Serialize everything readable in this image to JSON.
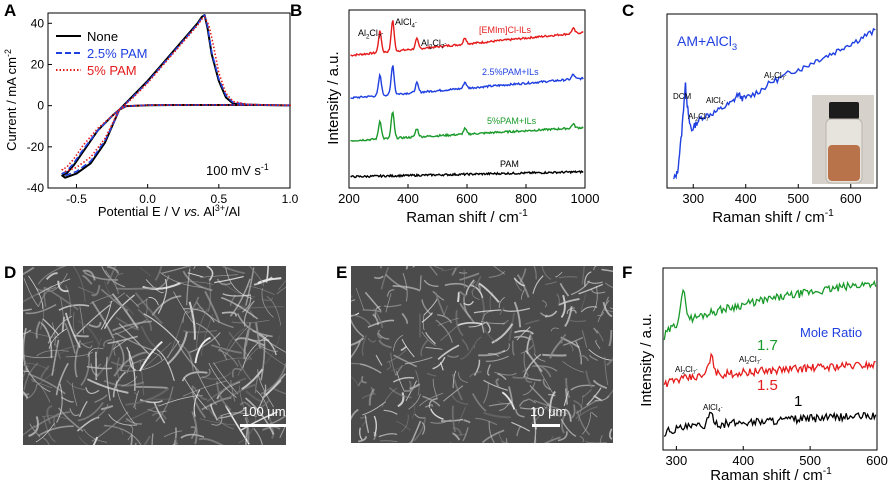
{
  "panel_letters": [
    "A",
    "B",
    "C",
    "D",
    "E",
    "F"
  ],
  "chart_data": [
    {
      "id": "A",
      "type": "line",
      "xlabel": "Potential E / V vs. Al³⁺/Al",
      "xlabel_parts": [
        "Potential E / V ",
        "vs.",
        " Al",
        "3+",
        "/Al"
      ],
      "ylabel_parts": [
        "Current / mA cm",
        "-2"
      ],
      "xlim": [
        -0.7,
        1.0
      ],
      "ylim": [
        -40,
        45
      ],
      "xticks": [
        -0.5,
        0.0,
        0.5,
        1.0
      ],
      "xtick_labels": [
        "-0.5",
        "0.0",
        "0.5",
        "1.0"
      ],
      "yticks": [
        -40,
        -20,
        0,
        20,
        40
      ],
      "ytick_labels": [
        "-40",
        "-20",
        "0",
        "20",
        "40"
      ],
      "annotation_parts": [
        "100 mV s",
        "-1"
      ],
      "legend": [
        "None",
        "2.5% PAM",
        "5% PAM"
      ],
      "series": [
        {
          "name": "None",
          "color": "#000000",
          "dash": "",
          "x": [
            -0.2,
            -0.1,
            0.0,
            0.1,
            0.2,
            0.3,
            0.35,
            0.38,
            0.4,
            0.42,
            0.45,
            0.5,
            0.55,
            0.6,
            0.7,
            0.8,
            0.9,
            1.0,
            0.8,
            0.6,
            0.4,
            0.2,
            0.0,
            -0.15,
            -0.2,
            -0.25,
            -0.35,
            -0.45,
            -0.52,
            -0.57,
            -0.6,
            -0.58,
            -0.5,
            -0.4,
            -0.3,
            -0.25,
            -0.2
          ],
          "y": [
            -2,
            5,
            12,
            20,
            28,
            36,
            40,
            43,
            44,
            38,
            25,
            12,
            4,
            1,
            0.5,
            0.3,
            0.2,
            0.1,
            0.3,
            0.3,
            0.3,
            0.3,
            0.2,
            -0.2,
            -2,
            -5,
            -12,
            -22,
            -29,
            -33,
            -34,
            -35,
            -33,
            -28,
            -18,
            -10,
            -2
          ]
        },
        {
          "name": "2.5% PAM",
          "color": "#1f3fe0",
          "dash": "6 3",
          "x": [
            -0.2,
            -0.1,
            0.0,
            0.1,
            0.2,
            0.3,
            0.35,
            0.38,
            0.4,
            0.42,
            0.45,
            0.5,
            0.55,
            0.6,
            0.7,
            0.8,
            0.9,
            1.0,
            0.8,
            0.6,
            0.4,
            0.2,
            0.0,
            -0.15,
            -0.2,
            -0.25,
            -0.35,
            -0.45,
            -0.52,
            -0.57,
            -0.6,
            -0.58,
            -0.5,
            -0.4,
            -0.3,
            -0.25,
            -0.2
          ],
          "y": [
            -2,
            4.5,
            11.5,
            19.5,
            27.5,
            35.5,
            39.5,
            42.5,
            44,
            39,
            26,
            13,
            5,
            1.5,
            0.6,
            0.3,
            0.2,
            0.1,
            0.3,
            0.3,
            0.3,
            0.3,
            0.2,
            -0.2,
            -2,
            -5,
            -12,
            -21,
            -28,
            -32,
            -33,
            -34,
            -32,
            -27,
            -17,
            -10,
            -2
          ]
        },
        {
          "name": "5% PAM",
          "color": "#e51c1c",
          "dash": "1.5 2",
          "x": [
            -0.2,
            -0.1,
            0.0,
            0.1,
            0.2,
            0.3,
            0.35,
            0.38,
            0.4,
            0.43,
            0.46,
            0.5,
            0.55,
            0.6,
            0.7,
            0.8,
            0.9,
            1.0,
            0.8,
            0.6,
            0.4,
            0.2,
            0.0,
            -0.15,
            -0.2,
            -0.25,
            -0.35,
            -0.45,
            -0.52,
            -0.57,
            -0.6,
            -0.58,
            -0.5,
            -0.4,
            -0.3,
            -0.25,
            -0.2
          ],
          "y": [
            -2,
            4,
            11,
            19,
            27,
            35,
            39,
            42,
            43,
            39,
            30,
            16,
            6,
            2,
            0.7,
            0.4,
            0.2,
            0.1,
            0.3,
            0.3,
            0.3,
            0.3,
            0.2,
            -0.2,
            -2,
            -5,
            -11,
            -19,
            -26,
            -30,
            -31,
            -32,
            -30,
            -25,
            -16,
            -9,
            -2
          ]
        }
      ]
    },
    {
      "id": "B",
      "type": "line",
      "xlabel": "Raman shift / cm⁻¹",
      "xlabel_parts": [
        "Raman shift / cm",
        "-1"
      ],
      "ylabel": "Intensity / a.u.",
      "xlim": [
        200,
        1000
      ],
      "xticks": [
        200,
        400,
        600,
        800,
        1000
      ],
      "xtick_labels": [
        "200",
        "400",
        "600",
        "800",
        "1000"
      ],
      "peak_labels": [
        {
          "text": "Al2Cl7-",
          "base": "Al",
          "sub1": "2",
          "mid": "Cl",
          "sub2": "7",
          "sup": "-",
          "x": 305
        },
        {
          "text": "AlCl4-",
          "base": "AlCl",
          "sub1": "4",
          "sup": "-",
          "x": 348
        },
        {
          "text": "Al2Cl7-",
          "base": "Al",
          "sub1": "2",
          "mid": "Cl",
          "sub2": "7",
          "sup": "-",
          "x": 430
        }
      ],
      "series": [
        {
          "name": "[EMIm]Cl-ILs",
          "color": "#e51c1c",
          "baseline": 0.76,
          "slope": 0.14,
          "peak_scale": 1.0
        },
        {
          "name": "2.5%PAM+ILs",
          "color": "#1f3fe0",
          "baseline": 0.5,
          "slope": 0.12,
          "peak_scale": 0.95
        },
        {
          "name": "5%PAM+ILs",
          "color": "#1a9a2a",
          "baseline": 0.24,
          "slope": 0.08,
          "peak_scale": 0.85
        },
        {
          "name": "PAM",
          "color": "#000000",
          "baseline": 0.02,
          "slope": 0.03,
          "peak_scale": 0.0
        }
      ],
      "peaks": [
        {
          "x": 305,
          "h": 0.13
        },
        {
          "x": 348,
          "h": 0.19
        },
        {
          "x": 430,
          "h": 0.06
        },
        {
          "x": 593,
          "h": 0.04
        },
        {
          "x": 960,
          "h": 0.03
        }
      ]
    },
    {
      "id": "C",
      "type": "line",
      "title": "AM+AlCl3",
      "title_parts": [
        "AM+AlCl",
        "3"
      ],
      "xlabel": "Raman shift / cm⁻¹",
      "xlabel_parts": [
        "Raman shift / cm",
        "-1"
      ],
      "xlim": [
        250,
        650
      ],
      "xticks": [
        300,
        400,
        500,
        600
      ],
      "xtick_labels": [
        "300",
        "400",
        "500",
        "600"
      ],
      "peak_labels": [
        {
          "text": "DCM",
          "x": 285
        },
        {
          "text": "Al2Cl7-",
          "base": "Al",
          "sub1": "2",
          "mid": "Cl",
          "sub2": "7",
          "sup": "-",
          "x": 312
        },
        {
          "text": "AlCl4-",
          "base": "AlCl",
          "sub1": "4",
          "sup": "-",
          "x": 355
        },
        {
          "text": "Al2Cl7-",
          "base": "Al",
          "sub1": "2",
          "mid": "Cl",
          "sub2": "7",
          "sup": "-",
          "x": 460
        }
      ],
      "series": [
        {
          "name": "AM+AlCl3",
          "color": "#1f3fe0",
          "x": [
            262,
            270,
            278,
            285,
            288,
            292,
            297,
            305,
            315,
            330,
            345,
            360,
            375,
            385,
            395,
            410,
            430,
            450,
            470,
            490,
            510,
            530,
            550,
            570,
            590,
            610,
            630,
            650
          ],
          "y": [
            0.0,
            0.05,
            0.3,
            0.62,
            0.5,
            0.38,
            0.32,
            0.36,
            0.4,
            0.42,
            0.44,
            0.47,
            0.5,
            0.55,
            0.52,
            0.54,
            0.58,
            0.63,
            0.66,
            0.7,
            0.72,
            0.76,
            0.79,
            0.82,
            0.86,
            0.89,
            0.93,
            0.96
          ]
        }
      ]
    },
    {
      "id": "F",
      "type": "line",
      "xlabel": "Raman shift / cm⁻¹",
      "xlabel_parts": [
        "Raman shift / cm",
        "-1"
      ],
      "ylabel": "Intensity / a.u.",
      "xlim": [
        280,
        600
      ],
      "xticks": [
        300,
        400,
        500,
        600
      ],
      "xtick_labels": [
        "300",
        "400",
        "500",
        "600"
      ],
      "legend_title": "Mole Ratio",
      "peak_labels": [
        {
          "text": "Al2Cl7-",
          "base": "Al",
          "sub1": "2",
          "mid": "Cl",
          "sub2": "7",
          "sup": "-",
          "x": 340
        },
        {
          "text": "Al2Cl7-",
          "base": "Al",
          "sub1": "2",
          "mid": "Cl",
          "sub2": "7",
          "sup": "-",
          "x": 430
        },
        {
          "text": "AlCl4-",
          "base": "AlCl",
          "sub1": "4",
          "sup": "-",
          "x": 348
        }
      ],
      "series": [
        {
          "name": "1.7",
          "color": "#1a9a2a",
          "baseline": 0.62,
          "slope": 0.35,
          "peak_x": 310,
          "peak_h": 0.18
        },
        {
          "name": "1.5",
          "color": "#e51c1c",
          "baseline": 0.33,
          "slope": 0.13,
          "peak_x": 352,
          "peak_h": 0.11
        },
        {
          "name": "1",
          "color": "#000000",
          "baseline": 0.03,
          "slope": 0.11,
          "peak_x": 352,
          "peak_h": 0.06
        }
      ]
    }
  ],
  "sem_images": [
    {
      "id": "D",
      "scale_label": "100 μm"
    },
    {
      "id": "E",
      "scale_label": "10 μm"
    }
  ]
}
